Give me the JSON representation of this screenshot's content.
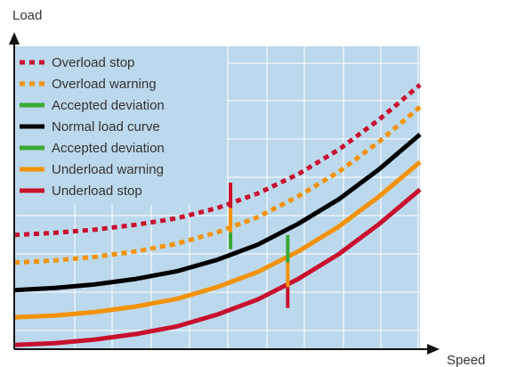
{
  "chart_data": {
    "type": "line",
    "title": "",
    "xlabel": "Speed",
    "ylabel": "Load",
    "x_ticks_shown": false,
    "y_ticks_shown": false,
    "grid": true,
    "legend_placement": "top-left",
    "plot_background": "#bcd8ec",
    "grid_color": "#ffffff",
    "xlim": [
      0,
      100
    ],
    "ylim": [
      0,
      100
    ],
    "x": [
      0,
      10,
      20,
      30,
      40,
      50,
      60,
      70,
      80,
      90,
      100
    ],
    "series": [
      {
        "name": "Overload stop",
        "style": "dotted",
        "color": "#c8102e",
        "values": [
          37.7,
          38.4,
          39.5,
          41.1,
          43.2,
          46.6,
          51.4,
          57.8,
          65.9,
          75.9,
          87.3
        ]
      },
      {
        "name": "Overload warning",
        "style": "dotted",
        "color": "#f39200",
        "values": [
          28.6,
          29.3,
          30.5,
          32.3,
          34.8,
          38.6,
          43.6,
          50.5,
          58.6,
          68.6,
          80.0
        ]
      },
      {
        "name": "Normal load curve",
        "style": "solid",
        "color": "#000000",
        "values": [
          19.5,
          20.2,
          21.4,
          23.2,
          25.7,
          29.5,
          34.5,
          41.4,
          49.5,
          59.5,
          70.9
        ]
      },
      {
        "name": "Underload warning",
        "style": "solid",
        "color": "#f39200",
        "values": [
          10.5,
          11.1,
          12.3,
          14.1,
          16.6,
          20.5,
          25.5,
          32.3,
          40.5,
          50.5,
          61.8
        ]
      },
      {
        "name": "Underload stop",
        "style": "solid",
        "color": "#c8102e",
        "values": [
          1.4,
          2.0,
          3.2,
          5.0,
          7.5,
          11.4,
          16.4,
          23.2,
          31.4,
          41.4,
          52.7
        ]
      }
    ],
    "legend": [
      {
        "label": "Overload stop",
        "style": "dotted",
        "color": "#c8102e"
      },
      {
        "label": "Overload warning",
        "style": "dotted",
        "color": "#f39200"
      },
      {
        "label": "Accepted deviation",
        "style": "solid",
        "color": "#3aa935"
      },
      {
        "label": "Normal load curve",
        "style": "solid",
        "color": "#000000"
      },
      {
        "label": "Accepted deviation",
        "style": "solid",
        "color": "#3aa935"
      },
      {
        "label": "Underload warning",
        "style": "solid",
        "color": "#f39200"
      },
      {
        "label": "Underload stop",
        "style": "solid",
        "color": "#c8102e"
      }
    ],
    "annotations": [
      {
        "name": "overload-deviation-marker",
        "x": 53.3,
        "y_from": 33.0,
        "y_to": 55.0,
        "segments": [
          {
            "color": "#c8102e",
            "from": 46.6,
            "to": 55.0
          },
          {
            "color": "#f39200",
            "from": 38.6,
            "to": 46.6
          },
          {
            "color": "#3aa935",
            "from": 33.0,
            "to": 38.6
          }
        ]
      },
      {
        "name": "underload-deviation-marker",
        "x": 67.4,
        "y_from": 13.6,
        "y_to": 37.7,
        "segments": [
          {
            "color": "#3aa935",
            "from": 28.6,
            "to": 37.7
          },
          {
            "color": "#f39200",
            "from": 20.5,
            "to": 28.6
          },
          {
            "color": "#c8102e",
            "from": 13.6,
            "to": 20.5
          }
        ]
      }
    ]
  }
}
